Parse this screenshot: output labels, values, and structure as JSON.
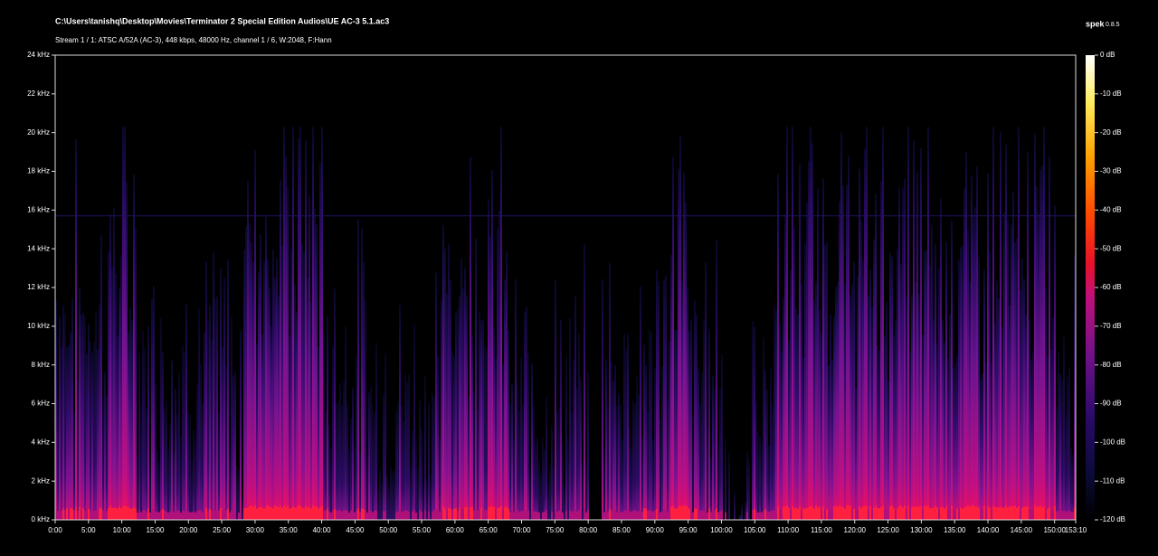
{
  "header": {
    "file": "C:\\Users\\tanishq\\Desktop\\Movies\\Terminator 2 Special Edition Audios\\UE AC-3 5.1.ac3",
    "stream": "Stream 1 / 1: ATSC A/52A (AC-3), 448 kbps, 48000 Hz, channel 1 / 6, W:2048, F:Hann",
    "app": "spek",
    "version": "0.8.5"
  },
  "frequency_axis": {
    "lim": [
      0,
      24
    ],
    "ticks": [
      {
        "value": 0,
        "label": "0 kHz"
      },
      {
        "value": 2,
        "label": "2 kHz"
      },
      {
        "value": 4,
        "label": "4 kHz"
      },
      {
        "value": 6,
        "label": "6 kHz"
      },
      {
        "value": 8,
        "label": "8 kHz"
      },
      {
        "value": 10,
        "label": "10 kHz"
      },
      {
        "value": 12,
        "label": "12 kHz"
      },
      {
        "value": 14,
        "label": "14 kHz"
      },
      {
        "value": 16,
        "label": "16 kHz"
      },
      {
        "value": 18,
        "label": "18 kHz"
      },
      {
        "value": 20,
        "label": "20 kHz"
      },
      {
        "value": 22,
        "label": "22 kHz"
      },
      {
        "value": 24,
        "label": "24 kHz"
      }
    ]
  },
  "time_axis": {
    "lim": [
      0,
      153.1667
    ],
    "ticks": [
      {
        "value": 0,
        "label": "0:00"
      },
      {
        "value": 5,
        "label": "5:00"
      },
      {
        "value": 10,
        "label": "10:00"
      },
      {
        "value": 15,
        "label": "15:00"
      },
      {
        "value": 20,
        "label": "20:00"
      },
      {
        "value": 25,
        "label": "25:00"
      },
      {
        "value": 30,
        "label": "30:00"
      },
      {
        "value": 35,
        "label": "35:00"
      },
      {
        "value": 40,
        "label": "40:00"
      },
      {
        "value": 45,
        "label": "45:00"
      },
      {
        "value": 50,
        "label": "50:00"
      },
      {
        "value": 55,
        "label": "55:00"
      },
      {
        "value": 60,
        "label": "60:00"
      },
      {
        "value": 65,
        "label": "65:00"
      },
      {
        "value": 70,
        "label": "70:00"
      },
      {
        "value": 75,
        "label": "75:00"
      },
      {
        "value": 80,
        "label": "80:00"
      },
      {
        "value": 85,
        "label": "85:00"
      },
      {
        "value": 90,
        "label": "90:00"
      },
      {
        "value": 95,
        "label": "95:00"
      },
      {
        "value": 100,
        "label": "100:00"
      },
      {
        "value": 105,
        "label": "105:00"
      },
      {
        "value": 110,
        "label": "110:00"
      },
      {
        "value": 115,
        "label": "115:00"
      },
      {
        "value": 120,
        "label": "120:00"
      },
      {
        "value": 125,
        "label": "125:00"
      },
      {
        "value": 130,
        "label": "130:00"
      },
      {
        "value": 135,
        "label": "135:00"
      },
      {
        "value": 140,
        "label": "140:00"
      },
      {
        "value": 145,
        "label": "145:00"
      },
      {
        "value": 150,
        "label": "150:00"
      },
      {
        "value": 153.1667,
        "label": "153:10"
      }
    ]
  },
  "level_scale": {
    "lim": [
      -120,
      0
    ],
    "ticks": [
      {
        "value": 0,
        "label": "0 dB"
      },
      {
        "value": -10,
        "label": "-10 dB"
      },
      {
        "value": -20,
        "label": "-20 dB"
      },
      {
        "value": -30,
        "label": "-30 dB"
      },
      {
        "value": -40,
        "label": "-40 dB"
      },
      {
        "value": -50,
        "label": "-50 dB"
      },
      {
        "value": -60,
        "label": "-60 dB"
      },
      {
        "value": -70,
        "label": "-70 dB"
      },
      {
        "value": -80,
        "label": "-80 dB"
      },
      {
        "value": -90,
        "label": "-90 dB"
      },
      {
        "value": -100,
        "label": "-100 dB"
      },
      {
        "value": -110,
        "label": "-110 dB"
      },
      {
        "value": -120,
        "label": "-120 dB"
      }
    ]
  }
}
